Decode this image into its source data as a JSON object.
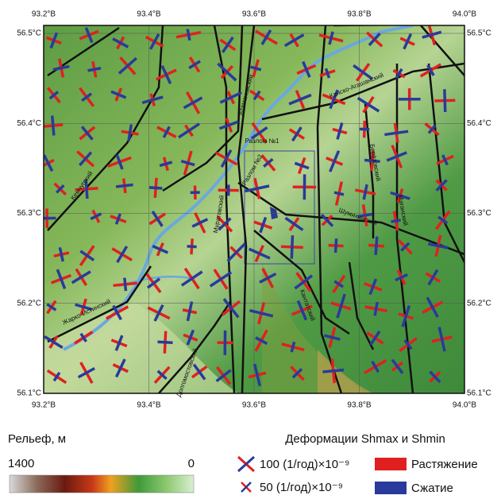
{
  "map": {
    "lon_ticks": [
      {
        "value": 93.2,
        "label": "93.2°В"
      },
      {
        "value": 93.4,
        "label": "93.4°В"
      },
      {
        "value": 93.6,
        "label": "93.6°В"
      },
      {
        "value": 93.8,
        "label": "93.8°В"
      },
      {
        "value": 94.0,
        "label": "94.0°В"
      }
    ],
    "lat_ticks": [
      {
        "value": 56.5,
        "label": "56.5°С"
      },
      {
        "value": 56.4,
        "label": "56.4°С"
      },
      {
        "value": 56.3,
        "label": "56.3°С"
      },
      {
        "value": 56.2,
        "label": "56.2°С"
      },
      {
        "value": 56.1,
        "label": "56.1°С"
      }
    ],
    "fault_labels": [
      "Атамановский",
      "Разлом №1",
      "Разлом №2",
      "Канско-Агашанский",
      "Муратовский",
      "Кантатский",
      "Шумихинский",
      "Берёзовский",
      "Маганский",
      "Жарко-Истинский",
      "Кемчугский",
      "Долгомостовский"
    ]
  },
  "legend": {
    "relief_title": "Рельеф, м",
    "relief_max": "1400",
    "relief_min": "0",
    "strain_title": "Деформации Shmax и Shmin",
    "scale_large": "100 (1/год)×10⁻⁹",
    "scale_small": "50 (1/год)×10⁻⁹",
    "extension": "Растяжение",
    "compression": "Сжатие"
  }
}
